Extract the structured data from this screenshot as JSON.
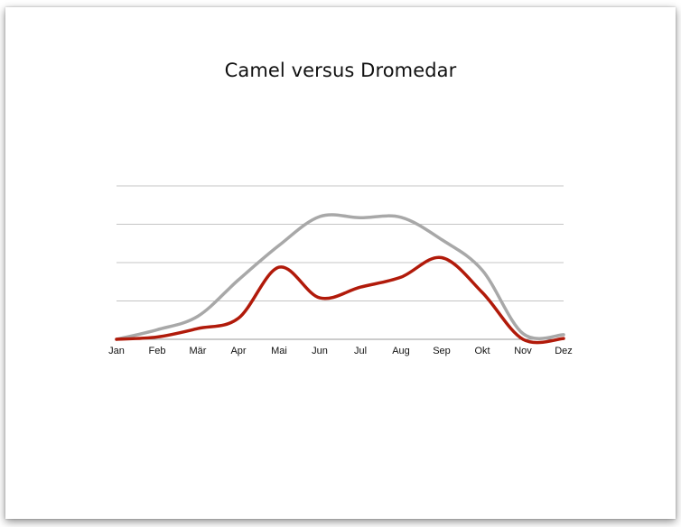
{
  "chart_data": {
    "type": "line",
    "title": "Camel versus Dromedar",
    "xlabel": "",
    "ylabel": "",
    "categories": [
      "Jan",
      "Feb",
      "Mär",
      "Apr",
      "Mai",
      "Jun",
      "Jul",
      "Aug",
      "Sep",
      "Okt",
      "Nov",
      "Dez"
    ],
    "ylim": [
      0,
      4
    ],
    "grid": true,
    "legend": "none",
    "series": [
      {
        "color": "#a8a8a8",
        "values": [
          0.0,
          0.25,
          0.6,
          1.55,
          2.45,
          3.2,
          3.17,
          3.18,
          2.6,
          1.8,
          0.15,
          0.12
        ]
      },
      {
        "color": "#b11a0a",
        "values": [
          0.0,
          0.06,
          0.28,
          0.55,
          1.88,
          1.08,
          1.36,
          1.62,
          2.13,
          1.22,
          0.0,
          0.02
        ]
      }
    ]
  }
}
